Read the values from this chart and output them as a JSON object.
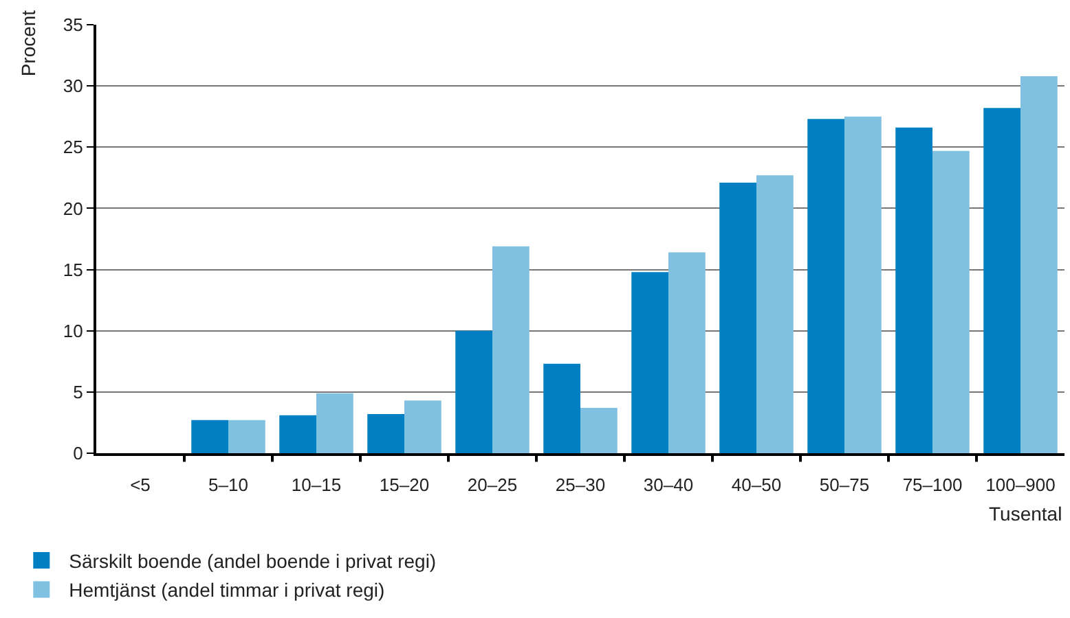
{
  "chart_data": {
    "type": "bar",
    "ylabel": "Procent",
    "xlabel": "Tusental",
    "categories": [
      "<5",
      "5–10",
      "10–15",
      "15–20",
      "20–25",
      "25–30",
      "30–40",
      "40–50",
      "50–75",
      "75–100",
      "100–900"
    ],
    "series": [
      {
        "name": "Särskilt boende (andel boende i privat regi)",
        "color": "#0080c3",
        "values": [
          null,
          2.7,
          3.1,
          3.2,
          10.0,
          7.3,
          14.8,
          22.1,
          27.3,
          26.6,
          28.2
        ]
      },
      {
        "name": "Hemtjänst (andel timmar i privat regi)",
        "color": "#80c0e1",
        "values": [
          null,
          2.7,
          4.9,
          4.3,
          16.9,
          3.7,
          16.4,
          22.7,
          27.5,
          24.7,
          30.8
        ]
      }
    ],
    "ylim": [
      0,
      35
    ],
    "yticks": [
      0,
      5,
      10,
      15,
      20,
      25,
      30,
      35
    ],
    "grid": "y",
    "legend": "bottom left"
  }
}
